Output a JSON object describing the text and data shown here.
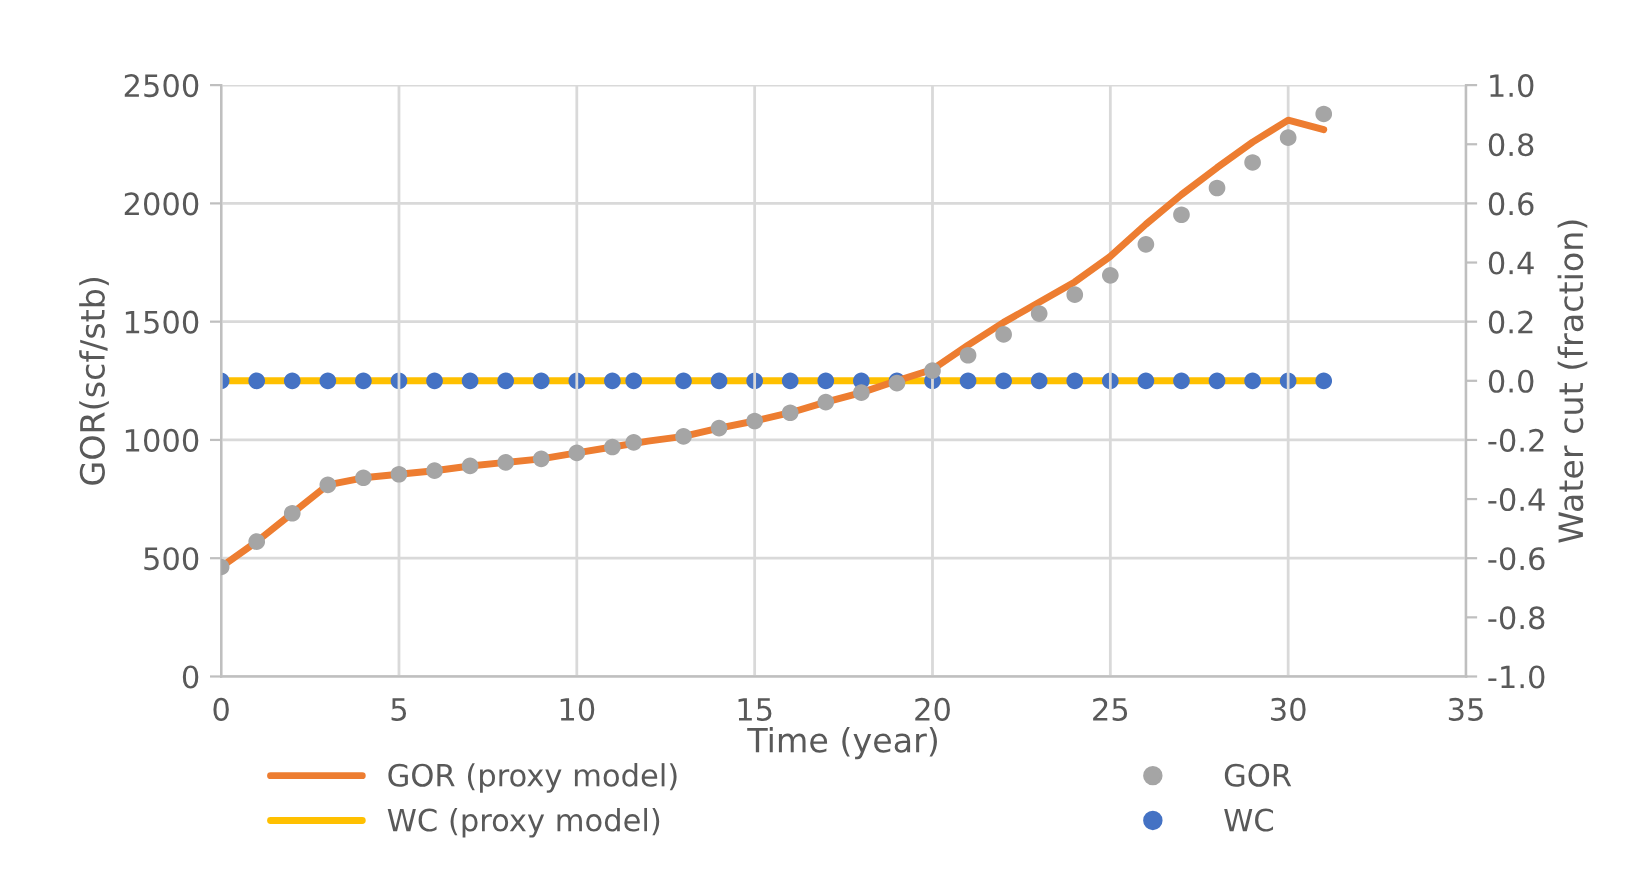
{
  "chart_data": {
    "type": "line",
    "xlabel": "Time (year)",
    "ylabel": "GOR(scf/stb)",
    "y2label": "Water cut (fraction)",
    "xlim": [
      0,
      35
    ],
    "xticks": [
      0,
      5,
      10,
      15,
      20,
      25,
      30,
      35
    ],
    "ylim": [
      0,
      2500
    ],
    "yticks": [
      0,
      500,
      1000,
      1500,
      2000,
      2500
    ],
    "y2lim": [
      -1.0,
      1.0
    ],
    "y2ticks": [
      {
        "value": -1.0,
        "label": "-1.0"
      },
      {
        "value": -0.8,
        "label": "-0.8"
      },
      {
        "value": -0.6,
        "label": "-0.6"
      },
      {
        "value": -0.4,
        "label": "-0.4"
      },
      {
        "value": -0.2,
        "label": "-0.2"
      },
      {
        "value": 0.0,
        "label": "0.0"
      },
      {
        "value": 0.2,
        "label": "0.2"
      },
      {
        "value": 0.4,
        "label": "0.4"
      },
      {
        "value": 0.6,
        "label": "0.6"
      },
      {
        "value": 0.8,
        "label": "0.8"
      },
      {
        "value": 1.0,
        "label": "1.0"
      }
    ],
    "grid": true,
    "legend": "bottom",
    "series": [
      {
        "name": "GOR (proxy model)",
        "color": "#ed7d31",
        "marker": "none",
        "x": [
          0,
          1,
          2,
          3,
          4,
          5,
          6,
          7,
          8,
          9,
          10,
          11,
          12,
          13,
          14,
          15,
          16,
          17,
          18,
          19,
          20,
          21,
          22,
          23,
          24,
          25,
          26,
          27,
          28,
          29,
          30,
          31
        ],
        "values": [
          463,
          570,
          690,
          810,
          840,
          855,
          870,
          890,
          905,
          920,
          945,
          970,
          995,
          1015,
          1050,
          1080,
          1115,
          1160,
          1200,
          1250,
          1298,
          1401,
          1497,
          1582,
          1668,
          1776,
          1912,
          2037,
          2151,
          2259,
          2352,
          2312
        ]
      },
      {
        "name": "GOR",
        "type": "scatter",
        "color": "#a5a5a5",
        "marker": "circle",
        "x": [
          0,
          1,
          2,
          3,
          4,
          5,
          6,
          7,
          8,
          9,
          10,
          11,
          11.6,
          13,
          14,
          15,
          16,
          17,
          18,
          19,
          20,
          21,
          22,
          23,
          24,
          25,
          26,
          27,
          28,
          29,
          30,
          31
        ],
        "values": [
          463,
          570,
          690,
          810,
          840,
          855,
          870,
          890,
          905,
          920,
          945,
          970,
          990,
          1015,
          1050,
          1080,
          1115,
          1160,
          1200,
          1240,
          1293,
          1358,
          1446,
          1534,
          1614,
          1696,
          1827,
          1952,
          2065,
          2173,
          2278,
          2378
        ]
      },
      {
        "name": "WC (proxy model)",
        "axis": "y2",
        "color": "#ffc000",
        "marker": "none",
        "x": [
          0,
          31
        ],
        "values": [
          0,
          0
        ]
      },
      {
        "name": "WC",
        "type": "scatter",
        "axis": "y2",
        "color": "#4472c4",
        "marker": "circle",
        "x": [
          0,
          1,
          2,
          3,
          4,
          5,
          6,
          7,
          8,
          9,
          10,
          11,
          11.6,
          13,
          14,
          15,
          16,
          17,
          18,
          19,
          20,
          21,
          22,
          23,
          24,
          25,
          26,
          27,
          28,
          29,
          30,
          31
        ],
        "values": [
          0,
          0,
          0,
          0,
          0,
          0,
          0,
          0,
          0,
          0,
          0,
          0,
          0,
          0,
          0,
          0,
          0,
          0,
          0,
          0,
          0,
          0,
          0,
          0,
          0,
          0,
          0,
          0,
          0,
          0,
          0,
          0
        ]
      }
    ]
  }
}
